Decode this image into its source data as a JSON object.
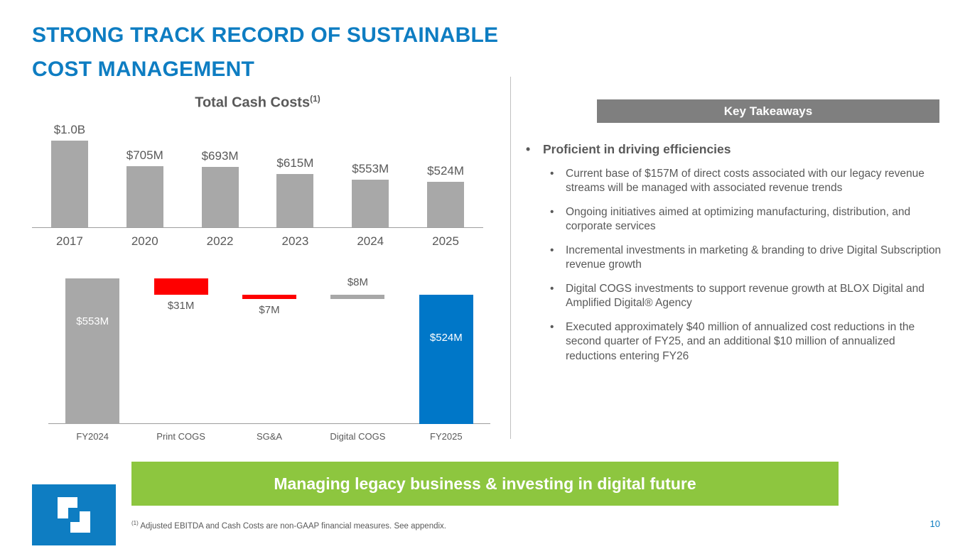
{
  "slide": {
    "title_line1": "STRONG TRACK RECORD OF SUSTAINABLE",
    "title_line2": "COST MANAGEMENT",
    "banner": "Managing legacy business & investing in digital future",
    "footnote_sup": "(1)",
    "footnote": "Adjusted EBITDA and Cash Costs are non-GAAP financial measures. See appendix.",
    "page_number": "10"
  },
  "colors": {
    "title_blue": "#0E7DC2",
    "bar_gray": "#A8A8A8",
    "bar_red": "#FE0000",
    "bar_blue": "#0077C8",
    "banner_green": "#8DC63F",
    "header_gray": "#7F7F7F"
  },
  "takeaways": {
    "header": "Key Takeaways",
    "main_bullet": "Proficient in driving efficiencies",
    "sub_bullets": [
      "Current base of $157M of direct costs associated with our legacy revenue streams will be managed with associated revenue trends",
      "Ongoing initiatives aimed at optimizing manufacturing, distribution, and corporate services",
      "Incremental investments in marketing & branding to drive Digital Subscription revenue growth",
      "Digital COGS investments to support revenue growth at BLOX Digital and Amplified Digital® Agency",
      "Executed approximately $40 million of annualized cost reductions in the second quarter of FY25, and an additional $10 million of annualized reductions entering FY26"
    ]
  },
  "chart_data": [
    {
      "type": "bar",
      "title": "Total Cash Costs",
      "title_superscript": "(1)",
      "categories": [
        "2017",
        "2020",
        "2022",
        "2023",
        "2024",
        "2025"
      ],
      "values": [
        1000,
        705,
        693,
        615,
        553,
        524
      ],
      "value_labels": [
        "$1.0B",
        "$705M",
        "$693M",
        "$615M",
        "$553M",
        "$524M"
      ],
      "ylim": [
        0,
        1000
      ],
      "bar_color": "#A8A8A8",
      "grid": false,
      "legend": false
    },
    {
      "type": "bar",
      "variant": "waterfall",
      "categories": [
        "FY2024",
        "Print COGS",
        "SG&A",
        "Digital COGS",
        "FY2025"
      ],
      "values": [
        553,
        -31,
        -7,
        8,
        524
      ],
      "value_labels": [
        "$553M",
        "$31M",
        "$7M",
        "$8M",
        "$524M"
      ],
      "bar_colors": [
        "#A8A8A8",
        "#FE0000",
        "#FE0000",
        "#A8A8A8",
        "#0077C8"
      ],
      "bar_roles": [
        "total",
        "decrease",
        "decrease",
        "increase",
        "total"
      ],
      "grid": false,
      "legend": false
    }
  ]
}
